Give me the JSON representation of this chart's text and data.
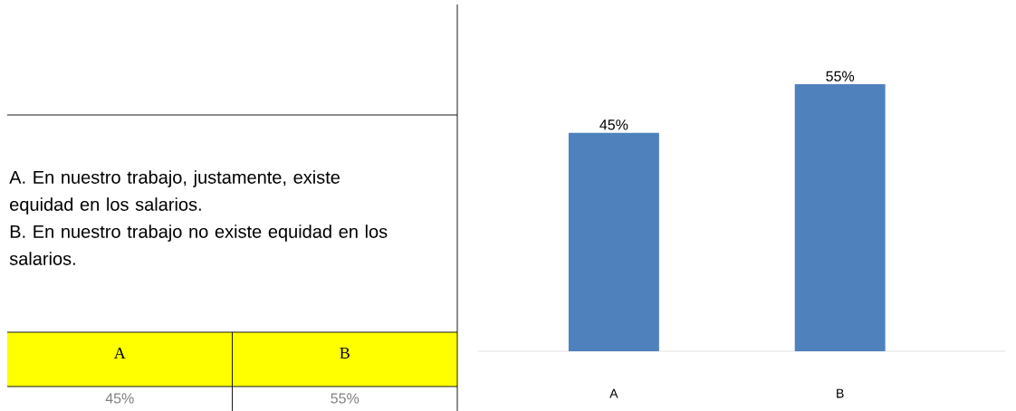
{
  "chart_data": {
    "type": "bar",
    "categories": [
      "A",
      "B"
    ],
    "values": [
      45,
      55
    ],
    "value_labels": [
      "45%",
      "55%"
    ],
    "color": "#4f81bd",
    "annotations": [
      "A. En nuestro trabajo, justamente, existe equidad en los salarios.",
      "B. En nuestro trabajo no existe equidad en los salarios."
    ]
  }
}
